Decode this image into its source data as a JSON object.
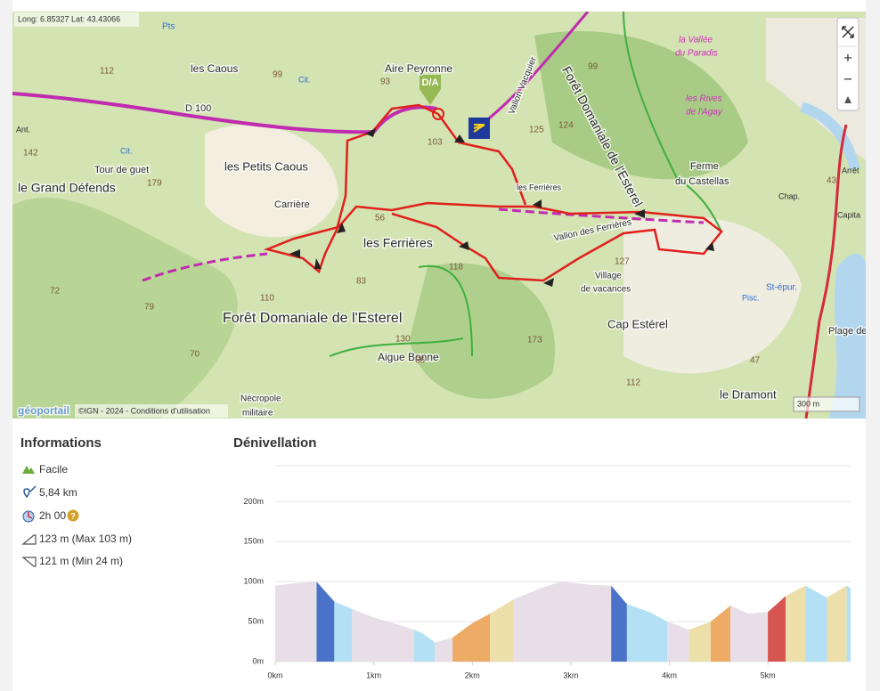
{
  "map": {
    "coordinates": "Long: 6.85327 Lat: 43.43066",
    "marker": "D/A",
    "zoom_in": "+",
    "zoom_out": "−",
    "attribution_logo": "géoportail",
    "attribution": "©IGN - 2024 - Conditions d'utilisation",
    "scale": "300 m",
    "labels": [
      "les Caous",
      "Aire Peyronne",
      "D 100",
      "les Petits Caous",
      "Carrière",
      "Tour de guet",
      "le Grand Défends",
      "les Ferrières",
      "les Ferrières",
      "Vallon des Ferrières",
      "Forêt Domaniale de l'Esterel",
      "Forêt Domaniale de l'Esterel",
      "Ferme",
      "du Castellas",
      "la Vallée",
      "du Paradis",
      "les Rives",
      "de l'Agay",
      "Village",
      "de vacances",
      "Cap Estérel",
      "Aigue Bonne",
      "Nécropole",
      "militaire",
      "le Dramont",
      "Plage de",
      "St-épur.",
      "Pisc.",
      "Chap.",
      "Vallon Vacquier",
      "112",
      "99",
      "93",
      "142",
      "179",
      "103",
      "125",
      "124",
      "99",
      "56",
      "118",
      "83",
      "110",
      "130",
      "66",
      "173",
      "112",
      "47",
      "72",
      "79",
      "70",
      "43",
      "127",
      "Pts",
      "Cit.",
      "Cit.",
      "Ant.",
      "Arrêt",
      "Capita"
    ]
  },
  "info": {
    "title": "Informations",
    "difficulty": "Facile",
    "distance": "5,84 km",
    "duration": "2h 00",
    "help": "?",
    "ascent": "123 m (Max 103 m)",
    "descent": "121 m (Min 24 m)"
  },
  "chart_data": {
    "type": "area",
    "title": "Dénivellation",
    "xlim": [
      0,
      5.84
    ],
    "ylim": [
      0,
      245
    ],
    "xticks": [
      {
        "value": 0,
        "label": "0km"
      },
      {
        "value": 1,
        "label": "1km"
      },
      {
        "value": 2,
        "label": "2km"
      },
      {
        "value": 3,
        "label": "3km"
      },
      {
        "value": 4,
        "label": "4km"
      },
      {
        "value": 5,
        "label": "5km"
      }
    ],
    "yticks": [
      {
        "value": 0,
        "label": "0m"
      },
      {
        "value": 50,
        "label": "50m"
      },
      {
        "value": 100,
        "label": "100m"
      },
      {
        "value": 150,
        "label": "150m"
      },
      {
        "value": 200,
        "label": "200m"
      }
    ],
    "grid": true,
    "series": [
      {
        "color": "#e7dee8",
        "x": [
          0,
          0.2,
          0.42
        ],
        "values": [
          95,
          98,
          100
        ]
      },
      {
        "color": "#4a72c8",
        "x": [
          0.42,
          0.6
        ],
        "values": [
          100,
          75
        ]
      },
      {
        "color": "#b3e0f5",
        "x": [
          0.6,
          0.78
        ],
        "values": [
          75,
          66
        ]
      },
      {
        "color": "#e7dee8",
        "x": [
          0.78,
          1.0,
          1.2,
          1.41
        ],
        "values": [
          66,
          55,
          48,
          40
        ]
      },
      {
        "color": "#b3e0f5",
        "x": [
          1.41,
          1.5,
          1.62
        ],
        "values": [
          40,
          35,
          24
        ]
      },
      {
        "color": "#e7dee8",
        "x": [
          1.62,
          1.8
        ],
        "values": [
          24,
          30
        ]
      },
      {
        "color": "#eeab66",
        "x": [
          1.8,
          2.0,
          2.18
        ],
        "values": [
          30,
          48,
          60
        ]
      },
      {
        "color": "#ecdfa9",
        "x": [
          2.18,
          2.42
        ],
        "values": [
          60,
          78
        ]
      },
      {
        "color": "#e7dee8",
        "x": [
          2.42,
          2.7,
          2.9,
          3.2,
          3.41
        ],
        "values": [
          78,
          92,
          100,
          96,
          95
        ]
      },
      {
        "color": "#4a72c8",
        "x": [
          3.41,
          3.57
        ],
        "values": [
          95,
          72
        ]
      },
      {
        "color": "#b3e0f5",
        "x": [
          3.57,
          3.8,
          3.98
        ],
        "values": [
          72,
          62,
          50
        ]
      },
      {
        "color": "#e7dee8",
        "x": [
          3.98,
          4.2
        ],
        "values": [
          50,
          40
        ]
      },
      {
        "color": "#ecdfa9",
        "x": [
          4.2,
          4.42
        ],
        "values": [
          40,
          50
        ]
      },
      {
        "color": "#eeab66",
        "x": [
          4.42,
          4.62
        ],
        "values": [
          50,
          70
        ]
      },
      {
        "color": "#e7dee8",
        "x": [
          4.62,
          4.8,
          5.0
        ],
        "values": [
          70,
          60,
          62
        ]
      },
      {
        "color": "#d65550",
        "x": [
          5.0,
          5.18
        ],
        "values": [
          62,
          82
        ]
      },
      {
        "color": "#ecdfa9",
        "x": [
          5.18,
          5.38
        ],
        "values": [
          82,
          95
        ]
      },
      {
        "color": "#b3e0f5",
        "x": [
          5.38,
          5.6
        ],
        "values": [
          95,
          80
        ]
      },
      {
        "color": "#ecdfa9",
        "x": [
          5.6,
          5.8
        ],
        "values": [
          80,
          95
        ]
      },
      {
        "color": "#b3e0f5",
        "x": [
          5.8,
          5.84
        ],
        "values": [
          95,
          92
        ]
      }
    ]
  }
}
